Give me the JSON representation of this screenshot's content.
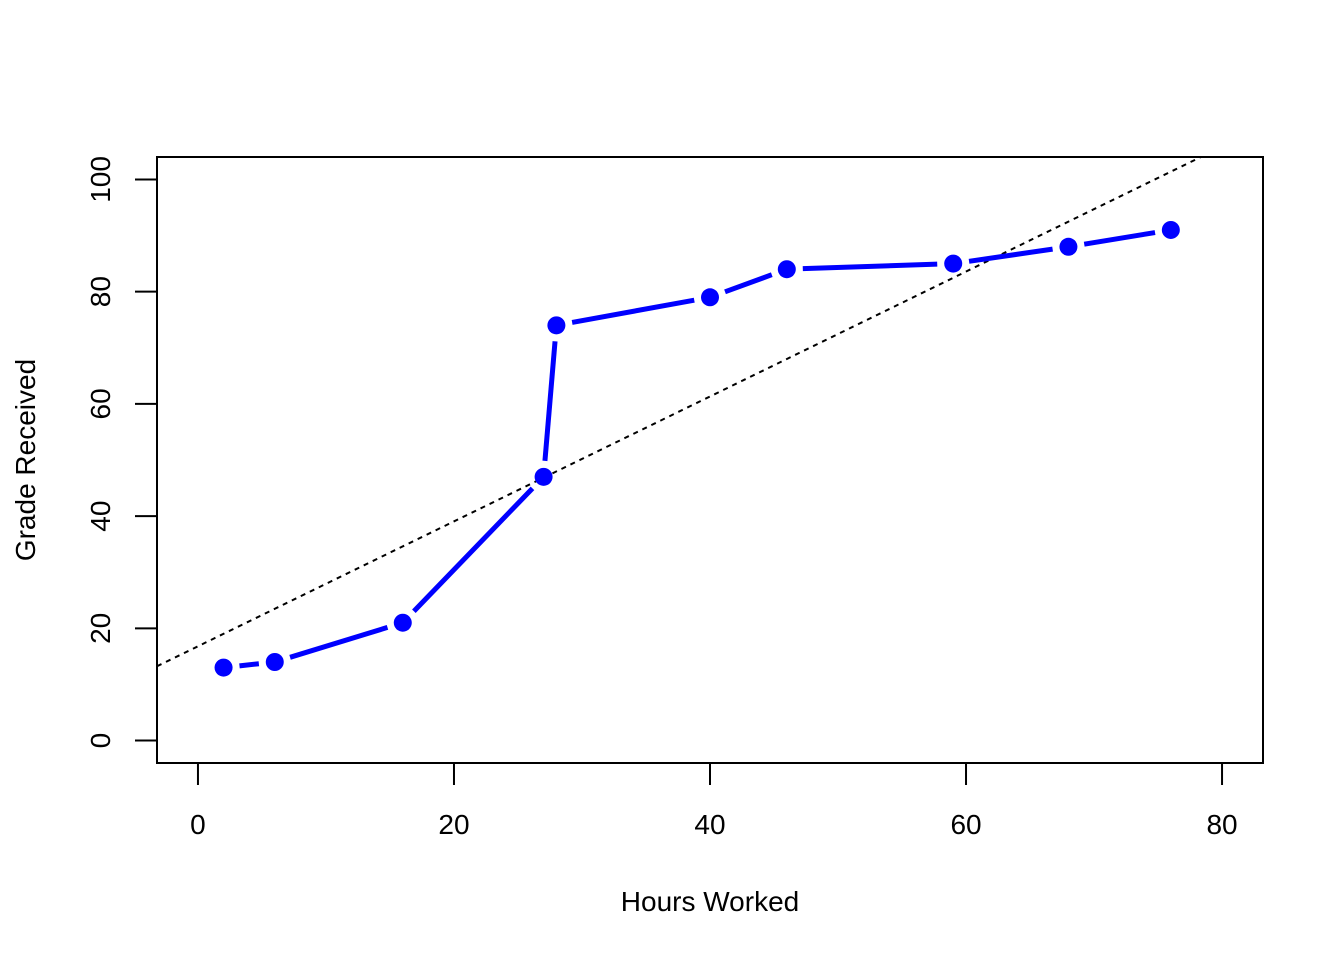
{
  "chart_data": {
    "type": "line",
    "title": "",
    "xlabel": "Hours Worked",
    "ylabel": "Grade Received",
    "xlim": [
      -3.2,
      83.2
    ],
    "ylim": [
      -4,
      104
    ],
    "x_ticks": [
      0,
      20,
      40,
      60,
      80
    ],
    "y_ticks": [
      0,
      20,
      40,
      60,
      80,
      100
    ],
    "grid": false,
    "legend": "none",
    "series": [
      {
        "points": [
          {
            "x": 2,
            "y": 13
          },
          {
            "x": 6,
            "y": 14
          },
          {
            "x": 16,
            "y": 21
          },
          {
            "x": 27,
            "y": 47
          },
          {
            "x": 28,
            "y": 74
          },
          {
            "x": 40,
            "y": 79
          },
          {
            "x": 46,
            "y": 84
          },
          {
            "x": 59,
            "y": 85
          },
          {
            "x": 68,
            "y": 88
          },
          {
            "x": 76,
            "y": 91
          }
        ],
        "color": "#0000ff",
        "style": "points-and-lines"
      }
    ],
    "reference_line": {
      "intercept": 16.8,
      "slope": 1.113,
      "style": "dotted",
      "color": "#000000"
    }
  }
}
